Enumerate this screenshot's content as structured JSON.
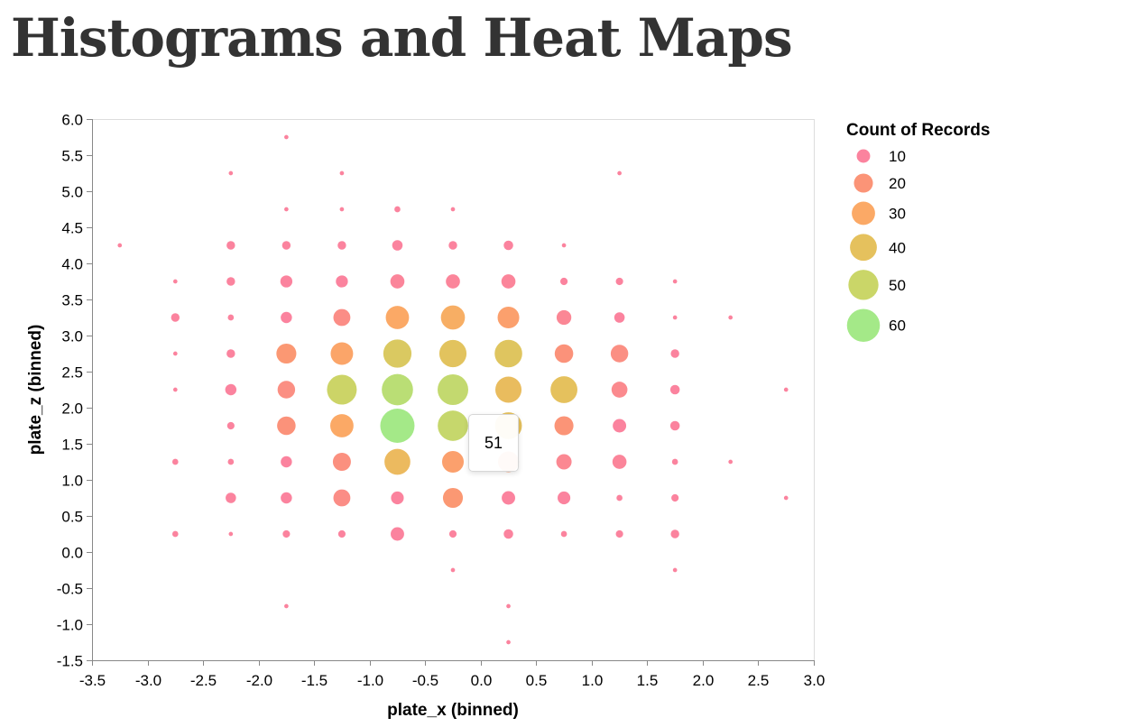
{
  "title": "Histograms and Heat Maps",
  "tooltip": {
    "value": "51"
  },
  "chart_data": {
    "type": "scatter",
    "encoding": "bubble: size and color encode Count of Records",
    "xlabel": "plate_x (binned)",
    "ylabel": "plate_z (binned)",
    "xlim": [
      -3.5,
      3.0
    ],
    "ylim": [
      -1.5,
      6.0
    ],
    "x_ticks": [
      "-3.5",
      "-3.0",
      "-2.5",
      "-2.0",
      "-1.5",
      "-1.0",
      "-0.5",
      "0.0",
      "0.5",
      "1.0",
      "1.5",
      "2.0",
      "2.5",
      "3.0"
    ],
    "y_ticks": [
      "-1.5",
      "-1.0",
      "-0.5",
      "0.0",
      "0.5",
      "1.0",
      "1.5",
      "2.0",
      "2.5",
      "3.0",
      "3.5",
      "4.0",
      "4.5",
      "5.0",
      "5.5",
      "6.0"
    ],
    "grid": false,
    "legend": {
      "title": "Count of Records",
      "placement": "right",
      "entries": [
        {
          "label": "10",
          "value": 10,
          "color": "#fb7693"
        },
        {
          "label": "20",
          "value": 20,
          "color": "#fb8868"
        },
        {
          "label": "30",
          "value": 30,
          "color": "#fba055"
        },
        {
          "label": "40",
          "value": 40,
          "color": "#e2ba4b"
        },
        {
          "label": "50",
          "value": 50,
          "color": "#c4d158"
        },
        {
          "label": "60",
          "value": 60,
          "color": "#9ae77b"
        }
      ]
    },
    "points": [
      {
        "x": -1.75,
        "y": 5.75,
        "count": 1
      },
      {
        "x": -2.25,
        "y": 5.25,
        "count": 1
      },
      {
        "x": -1.25,
        "y": 5.25,
        "count": 1
      },
      {
        "x": 1.25,
        "y": 5.25,
        "count": 1
      },
      {
        "x": -1.75,
        "y": 4.75,
        "count": 1
      },
      {
        "x": -1.25,
        "y": 4.75,
        "count": 1
      },
      {
        "x": -0.75,
        "y": 4.75,
        "count": 2
      },
      {
        "x": -0.25,
        "y": 4.75,
        "count": 1
      },
      {
        "x": -3.25,
        "y": 4.25,
        "count": 1
      },
      {
        "x": -2.25,
        "y": 4.25,
        "count": 4
      },
      {
        "x": -1.75,
        "y": 4.25,
        "count": 4
      },
      {
        "x": -1.25,
        "y": 4.25,
        "count": 4
      },
      {
        "x": -0.75,
        "y": 4.25,
        "count": 6
      },
      {
        "x": -0.25,
        "y": 4.25,
        "count": 4
      },
      {
        "x": 0.25,
        "y": 4.25,
        "count": 5
      },
      {
        "x": 0.75,
        "y": 4.25,
        "count": 1
      },
      {
        "x": -2.75,
        "y": 3.75,
        "count": 1
      },
      {
        "x": -2.25,
        "y": 3.75,
        "count": 4
      },
      {
        "x": -1.75,
        "y": 3.75,
        "count": 8
      },
      {
        "x": -1.25,
        "y": 3.75,
        "count": 8
      },
      {
        "x": -0.75,
        "y": 3.75,
        "count": 11
      },
      {
        "x": -0.25,
        "y": 3.75,
        "count": 11
      },
      {
        "x": 0.25,
        "y": 3.75,
        "count": 11
      },
      {
        "x": 0.75,
        "y": 3.75,
        "count": 3
      },
      {
        "x": 1.25,
        "y": 3.75,
        "count": 3
      },
      {
        "x": 1.75,
        "y": 3.75,
        "count": 1
      },
      {
        "x": -2.75,
        "y": 3.25,
        "count": 4
      },
      {
        "x": -2.25,
        "y": 3.25,
        "count": 2
      },
      {
        "x": -1.75,
        "y": 3.25,
        "count": 7
      },
      {
        "x": -1.25,
        "y": 3.25,
        "count": 16
      },
      {
        "x": -0.75,
        "y": 3.25,
        "count": 30
      },
      {
        "x": -0.25,
        "y": 3.25,
        "count": 32
      },
      {
        "x": 0.25,
        "y": 3.25,
        "count": 26
      },
      {
        "x": 0.75,
        "y": 3.25,
        "count": 12
      },
      {
        "x": 1.25,
        "y": 3.25,
        "count": 6
      },
      {
        "x": 1.75,
        "y": 3.25,
        "count": 1
      },
      {
        "x": 2.25,
        "y": 3.25,
        "count": 1
      },
      {
        "x": -2.75,
        "y": 2.75,
        "count": 1
      },
      {
        "x": -2.25,
        "y": 2.75,
        "count": 4
      },
      {
        "x": -1.75,
        "y": 2.75,
        "count": 22
      },
      {
        "x": -1.25,
        "y": 2.75,
        "count": 28
      },
      {
        "x": -0.75,
        "y": 2.75,
        "count": 44
      },
      {
        "x": -0.25,
        "y": 2.75,
        "count": 41
      },
      {
        "x": 0.25,
        "y": 2.75,
        "count": 42
      },
      {
        "x": 0.75,
        "y": 2.75,
        "count": 19
      },
      {
        "x": 1.25,
        "y": 2.75,
        "count": 17
      },
      {
        "x": 1.75,
        "y": 2.75,
        "count": 4
      },
      {
        "x": -2.75,
        "y": 2.25,
        "count": 1
      },
      {
        "x": -2.25,
        "y": 2.25,
        "count": 7
      },
      {
        "x": -1.75,
        "y": 2.25,
        "count": 17
      },
      {
        "x": -1.25,
        "y": 2.25,
        "count": 49
      },
      {
        "x": -0.75,
        "y": 2.25,
        "count": 54
      },
      {
        "x": -0.25,
        "y": 2.25,
        "count": 52
      },
      {
        "x": 0.25,
        "y": 2.25,
        "count": 38
      },
      {
        "x": 0.75,
        "y": 2.25,
        "count": 40
      },
      {
        "x": 1.25,
        "y": 2.25,
        "count": 14
      },
      {
        "x": 1.75,
        "y": 2.25,
        "count": 5
      },
      {
        "x": 2.75,
        "y": 2.25,
        "count": 1
      },
      {
        "x": -2.25,
        "y": 1.75,
        "count": 3
      },
      {
        "x": -1.75,
        "y": 1.75,
        "count": 19
      },
      {
        "x": -1.25,
        "y": 1.75,
        "count": 30
      },
      {
        "x": -0.75,
        "y": 1.75,
        "count": 65
      },
      {
        "x": -0.25,
        "y": 1.75,
        "count": 51
      },
      {
        "x": 0.25,
        "y": 1.75,
        "count": 40
      },
      {
        "x": 0.75,
        "y": 1.75,
        "count": 20
      },
      {
        "x": 1.25,
        "y": 1.75,
        "count": 10
      },
      {
        "x": 1.75,
        "y": 1.75,
        "count": 5
      },
      {
        "x": -2.75,
        "y": 1.25,
        "count": 2
      },
      {
        "x": -2.25,
        "y": 1.25,
        "count": 2
      },
      {
        "x": -1.75,
        "y": 1.25,
        "count": 7
      },
      {
        "x": -1.25,
        "y": 1.25,
        "count": 18
      },
      {
        "x": -0.75,
        "y": 1.25,
        "count": 37
      },
      {
        "x": -0.25,
        "y": 1.25,
        "count": 26
      },
      {
        "x": 0.25,
        "y": 1.25,
        "count": 24
      },
      {
        "x": 0.75,
        "y": 1.25,
        "count": 13
      },
      {
        "x": 1.25,
        "y": 1.25,
        "count": 11
      },
      {
        "x": 1.75,
        "y": 1.25,
        "count": 2
      },
      {
        "x": 2.25,
        "y": 1.25,
        "count": 1
      },
      {
        "x": -2.25,
        "y": 0.75,
        "count": 6
      },
      {
        "x": -1.75,
        "y": 0.75,
        "count": 7
      },
      {
        "x": -1.25,
        "y": 0.75,
        "count": 16
      },
      {
        "x": -0.75,
        "y": 0.75,
        "count": 9
      },
      {
        "x": -0.25,
        "y": 0.75,
        "count": 22
      },
      {
        "x": 0.25,
        "y": 0.75,
        "count": 10
      },
      {
        "x": 0.75,
        "y": 0.75,
        "count": 9
      },
      {
        "x": 1.25,
        "y": 0.75,
        "count": 2
      },
      {
        "x": 1.75,
        "y": 0.75,
        "count": 3
      },
      {
        "x": 2.75,
        "y": 0.75,
        "count": 1
      },
      {
        "x": -2.75,
        "y": 0.25,
        "count": 2
      },
      {
        "x": -2.25,
        "y": 0.25,
        "count": 1
      },
      {
        "x": -1.75,
        "y": 0.25,
        "count": 3
      },
      {
        "x": -1.25,
        "y": 0.25,
        "count": 3
      },
      {
        "x": -0.75,
        "y": 0.25,
        "count": 10
      },
      {
        "x": -0.25,
        "y": 0.25,
        "count": 3
      },
      {
        "x": 0.25,
        "y": 0.25,
        "count": 5
      },
      {
        "x": 0.75,
        "y": 0.25,
        "count": 2
      },
      {
        "x": 1.25,
        "y": 0.25,
        "count": 3
      },
      {
        "x": 1.75,
        "y": 0.25,
        "count": 4
      },
      {
        "x": -0.25,
        "y": -0.25,
        "count": 1
      },
      {
        "x": 1.75,
        "y": -0.25,
        "count": 1
      },
      {
        "x": -1.75,
        "y": -0.75,
        "count": 1
      },
      {
        "x": 0.25,
        "y": -0.75,
        "count": 1
      },
      {
        "x": 0.25,
        "y": -1.25,
        "count": 1
      }
    ]
  }
}
